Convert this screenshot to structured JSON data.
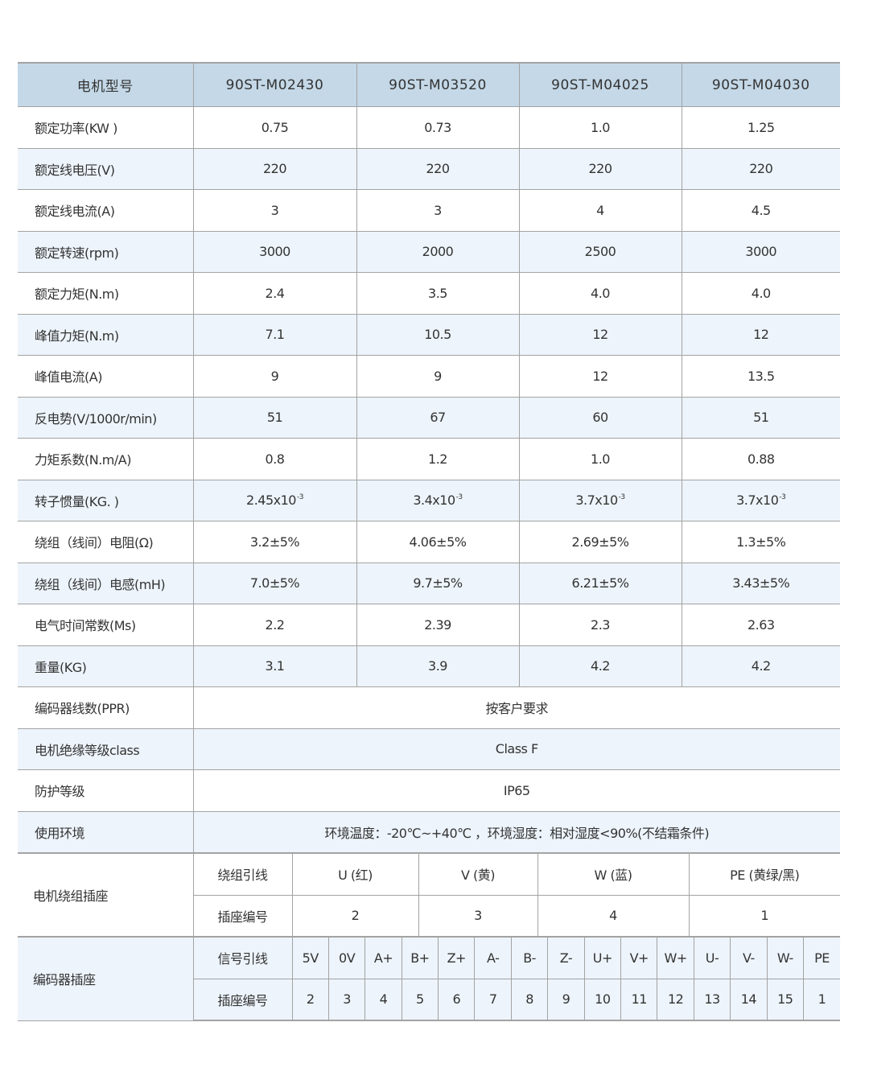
{
  "header": {
    "label": "电机型号",
    "models": [
      "90ST-M02430",
      "90ST-M03520",
      "90ST-M04025",
      "90ST-M04030"
    ]
  },
  "rows": [
    {
      "label": "额定功率(KW )",
      "values": [
        "0.75",
        "0.73",
        "1.0",
        "1.25"
      ]
    },
    {
      "label": "额定线电压(V)",
      "values": [
        "220",
        "220",
        "220",
        "220"
      ]
    },
    {
      "label": "额定线电流(A)",
      "values": [
        "3",
        "3",
        "4",
        "4.5"
      ]
    },
    {
      "label": "额定转速(rpm)",
      "values": [
        "3000",
        "2000",
        "2500",
        "3000"
      ]
    },
    {
      "label": "额定力矩(N.m)",
      "values": [
        "2.4",
        "3.5",
        "4.0",
        "4.0"
      ]
    },
    {
      "label": "峰值力矩(N.m)",
      "values": [
        "7.1",
        "10.5",
        "12",
        "12"
      ]
    },
    {
      "label": "峰值电流(A)",
      "values": [
        "9",
        "9",
        "12",
        "13.5"
      ]
    },
    {
      "label": "反电势(V/1000r/min)",
      "values": [
        "51",
        "67",
        "60",
        "51"
      ]
    },
    {
      "label": "力矩系数(N.m/A)",
      "values": [
        "0.8",
        "1.2",
        "1.0",
        "0.88"
      ]
    },
    {
      "label": "转子惯量(KG.   )",
      "values": [
        "2.45x10",
        "3.4x10",
        "3.7x10",
        "3.7x10"
      ],
      "exponent": "-3"
    },
    {
      "label": "绕组（线间）电阻(Ω)",
      "values": [
        "3.2±5%",
        "4.06±5%",
        "2.69±5%",
        "1.3±5%"
      ]
    },
    {
      "label": "绕组（线间）电感(mH)",
      "values": [
        "7.0±5%",
        "9.7±5%",
        "6.21±5%",
        "3.43±5%"
      ]
    },
    {
      "label": "电气时间常数(Ms)",
      "values": [
        "2.2",
        "2.39",
        "2.3",
        "2.63"
      ]
    },
    {
      "label": "重量(KG)",
      "values": [
        "3.1",
        "3.9",
        "4.2",
        "4.2"
      ]
    }
  ],
  "span_rows": [
    {
      "label": "编码器线数(PPR)",
      "value": "按客户要求"
    },
    {
      "label": "电机绝缘等级class",
      "value": "Class F"
    },
    {
      "label": "防护等级",
      "value": "IP65"
    },
    {
      "label": "使用环境",
      "value": "环境温度：-20℃~+40℃ ，环境湿度：相对湿度<90%(不结霜条件)"
    }
  ],
  "winding": {
    "label": "电机绕组插座",
    "lead_label": "绕组引线",
    "pin_label": "插座编号",
    "leads": [
      "U (红)",
      "V (黄)",
      "W (蓝)",
      "PE (黄绿/黑)"
    ],
    "pins": [
      "2",
      "3",
      "4",
      "1"
    ]
  },
  "encoder": {
    "label": "编码器插座",
    "lead_label": "信号引线",
    "pin_label": "插座编号",
    "leads": [
      "5V",
      "0V",
      "A+",
      "B+",
      "Z+",
      "A-",
      "B-",
      "Z-",
      "U+",
      "V+",
      "W+",
      "U-",
      "V-",
      "W-",
      "PE"
    ],
    "pins": [
      "2",
      "3",
      "4",
      "5",
      "6",
      "7",
      "8",
      "9",
      "10",
      "11",
      "12",
      "13",
      "14",
      "15",
      "1"
    ]
  },
  "colors": {
    "header_bg": "#c4d8e7",
    "alt_row_bg": "#edf4fb",
    "grid": "#a3a3a3"
  }
}
